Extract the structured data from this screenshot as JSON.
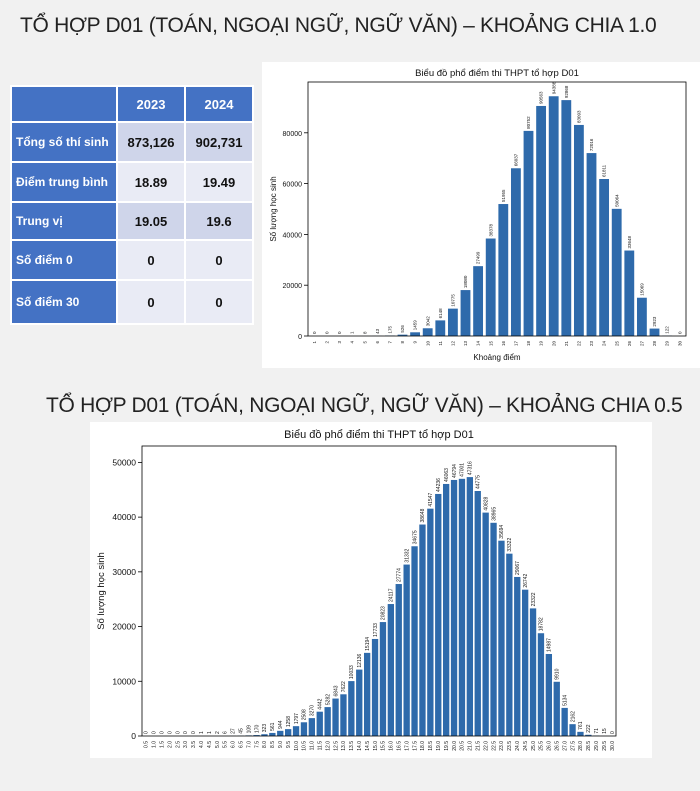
{
  "section1": {
    "title": "TỔ HỢP D01 (TOÁN, NGOẠI NGỮ, NGỮ VĂN) – KHOẢNG CHIA 1.0"
  },
  "section2": {
    "title": "TỔ HỢP D01 (TOÁN, NGOẠI NGỮ, NGỮ VĂN) – KHOẢNG CHIA 0.5"
  },
  "table": {
    "headers": [
      "",
      "2023",
      "2024"
    ],
    "rows": [
      {
        "label": "Tổng số thí sinh",
        "v2023": "873,126",
        "v2024": "902,731"
      },
      {
        "label": "Điểm trung bình",
        "v2023": "18.89",
        "v2024": "19.49"
      },
      {
        "label": "Trung vị",
        "v2023": "19.05",
        "v2024": "19.6"
      },
      {
        "label": "Số điểm 0",
        "v2023": "0",
        "v2024": "0"
      },
      {
        "label": "Số điểm 30",
        "v2023": "0",
        "v2024": "0"
      }
    ],
    "highlight_color": "#e02020"
  },
  "colors": {
    "bar": "#2e6aab",
    "header": "#4472c4"
  },
  "chart_data": [
    {
      "type": "bar",
      "title": "Biểu đồ phổ điểm thi THPT tổ hợp D01",
      "xlabel": "Khoảng điểm",
      "ylabel": "Số lượng học sinh",
      "ylim": [
        0,
        100000
      ],
      "yticks": [
        0,
        20000,
        40000,
        60000,
        80000
      ],
      "categories": [
        "1",
        "2",
        "3",
        "4",
        "5",
        "6",
        "7",
        "8",
        "9",
        "10",
        "11",
        "12",
        "13",
        "14",
        "15",
        "16",
        "17",
        "18",
        "19",
        "20",
        "21",
        "22",
        "23",
        "24",
        "25",
        "26",
        "27",
        "28",
        "29",
        "30"
      ],
      "values": [
        0,
        0,
        0,
        1,
        8,
        43,
        175,
        526,
        1459,
        3042,
        6148,
        10775,
        18080,
        27499,
        38378,
        51955,
        66037,
        80752,
        90563,
        94388,
        92868,
        83093,
        72016,
        61811,
        50064,
        33648,
        15069,
        2923,
        122,
        0
      ],
      "value_labels": [
        "0",
        "0",
        "0",
        "1",
        "8",
        "43",
        "175",
        "526",
        "1459",
        "3042",
        "6148",
        "10775",
        "18080",
        "27499",
        "38378",
        "51955",
        "66037",
        "80752",
        "90563",
        "94388",
        "92868",
        "83093",
        "72016",
        "61811",
        "50064",
        "33648",
        "15069",
        "2923",
        "122",
        "0"
      ]
    },
    {
      "type": "bar",
      "title": "Biểu đồ phổ điểm thi THPT tổ hợp D01",
      "xlabel": "",
      "ylabel": "Số lượng học sinh",
      "ylim": [
        0,
        53000
      ],
      "yticks": [
        0,
        10000,
        20000,
        30000,
        40000,
        50000
      ],
      "categories": [
        "0.5",
        "1.0",
        "1.5",
        "2.0",
        "2.5",
        "3.0",
        "3.5",
        "4.0",
        "4.5",
        "5.0",
        "5.5",
        "6.0",
        "6.5",
        "7.0",
        "7.5",
        "8.0",
        "8.5",
        "9.0",
        "9.5",
        "10.0",
        "10.5",
        "11.0",
        "11.5",
        "12.0",
        "12.5",
        "13.0",
        "13.5",
        "14.0",
        "14.5",
        "15.0",
        "15.5",
        "16.0",
        "16.5",
        "17.0",
        "17.5",
        "18.0",
        "18.5",
        "19.0",
        "19.5",
        "20.0",
        "20.5",
        "21.0",
        "21.5",
        "22.0",
        "22.5",
        "23.0",
        "23.5",
        "24.0",
        "24.5",
        "25.0",
        "25.5",
        "26.0",
        "26.5",
        "27.0",
        "27.5",
        "28.0",
        "28.5",
        "29.0",
        "29.5",
        "30.0"
      ],
      "values": [
        0,
        0,
        0,
        0,
        0,
        0,
        0,
        1,
        1,
        2,
        6,
        27,
        45,
        109,
        170,
        323,
        561,
        944,
        1258,
        1797,
        2508,
        3270,
        4442,
        5282,
        6843,
        7622,
        10033,
        12136,
        15194,
        17733,
        20823,
        24117,
        27774,
        31332,
        34675,
        38648,
        41547,
        44236,
        46063,
        46794,
        47001,
        47316,
        44775,
        40828,
        38965,
        35694,
        33322,
        29067,
        26742,
        23322,
        18782,
        14987,
        9910,
        5134,
        2162,
        761,
        222,
        71,
        15,
        0
      ],
      "value_labels": [
        "0",
        "0",
        "0",
        "0",
        "0",
        "0",
        "0",
        "1",
        "1",
        "2",
        "6",
        "27",
        "45",
        "109",
        "170",
        "323",
        "561",
        "944",
        "1258",
        "1797",
        "2508",
        "3270",
        "4442",
        "5282",
        "6843",
        "7622",
        "10033",
        "12136",
        "15194",
        "17733",
        "20823",
        "24117",
        "27774",
        "31332",
        "34675",
        "38648",
        "41547",
        "44236",
        "46063",
        "46794",
        "47001",
        "47316",
        "44775",
        "40828",
        "38965",
        "35694",
        "33322",
        "29067",
        "26742",
        "23322",
        "18782",
        "14987",
        "9910",
        "5134",
        "2162",
        "761",
        "222",
        "71",
        "15",
        "0"
      ]
    }
  ]
}
